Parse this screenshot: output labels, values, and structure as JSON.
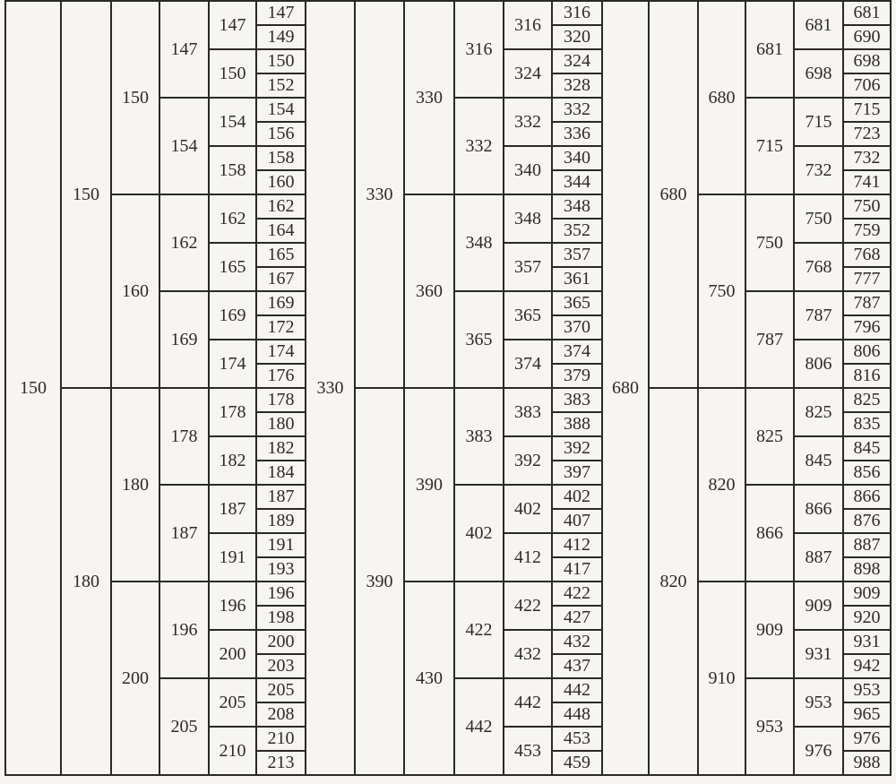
{
  "table": {
    "description": "Preferred number series table: columns E6, E12, E24, E48, E96, E192 for three decade groups",
    "groups": [
      {
        "e6": "150",
        "e12": [
          "150",
          "180"
        ],
        "e24": [
          "150",
          "160",
          "180",
          "200"
        ],
        "e48": [
          "147",
          "154",
          "162",
          "169",
          "178",
          "187",
          "196",
          "205"
        ],
        "e96": [
          "147",
          "150",
          "154",
          "158",
          "162",
          "165",
          "169",
          "174",
          "178",
          "182",
          "187",
          "191",
          "196",
          "200",
          "205",
          "210"
        ],
        "e192": [
          "147",
          "149",
          "150",
          "152",
          "154",
          "156",
          "158",
          "160",
          "162",
          "164",
          "165",
          "167",
          "169",
          "172",
          "174",
          "176",
          "178",
          "180",
          "182",
          "184",
          "187",
          "189",
          "191",
          "193",
          "196",
          "198",
          "200",
          "203",
          "205",
          "208",
          "210",
          "213"
        ]
      },
      {
        "e6": "330",
        "e12": [
          "330",
          "390"
        ],
        "e24": [
          "330",
          "360",
          "390",
          "430"
        ],
        "e48": [
          "316",
          "332",
          "348",
          "365",
          "383",
          "402",
          "422",
          "442"
        ],
        "e96": [
          "316",
          "324",
          "332",
          "340",
          "348",
          "357",
          "365",
          "374",
          "383",
          "392",
          "402",
          "412",
          "422",
          "432",
          "442",
          "453"
        ],
        "e192": [
          "316",
          "320",
          "324",
          "328",
          "332",
          "336",
          "340",
          "344",
          "348",
          "352",
          "357",
          "361",
          "365",
          "370",
          "374",
          "379",
          "383",
          "388",
          "392",
          "397",
          "402",
          "407",
          "412",
          "417",
          "422",
          "427",
          "432",
          "437",
          "442",
          "448",
          "453",
          "459"
        ]
      },
      {
        "e6": "680",
        "e12": [
          "680",
          "820"
        ],
        "e24": [
          "680",
          "750",
          "820",
          "910"
        ],
        "e48": [
          "681",
          "715",
          "750",
          "787",
          "825",
          "866",
          "909",
          "953"
        ],
        "e96": [
          "681",
          "698",
          "715",
          "732",
          "750",
          "768",
          "787",
          "806",
          "825",
          "845",
          "866",
          "887",
          "909",
          "931",
          "953",
          "976"
        ],
        "e192": [
          "681",
          "690",
          "698",
          "706",
          "715",
          "723",
          "732",
          "741",
          "750",
          "759",
          "768",
          "777",
          "787",
          "796",
          "806",
          "816",
          "825",
          "835",
          "845",
          "856",
          "866",
          "876",
          "887",
          "898",
          "909",
          "920",
          "931",
          "942",
          "953",
          "965",
          "976",
          "988"
        ]
      }
    ]
  }
}
